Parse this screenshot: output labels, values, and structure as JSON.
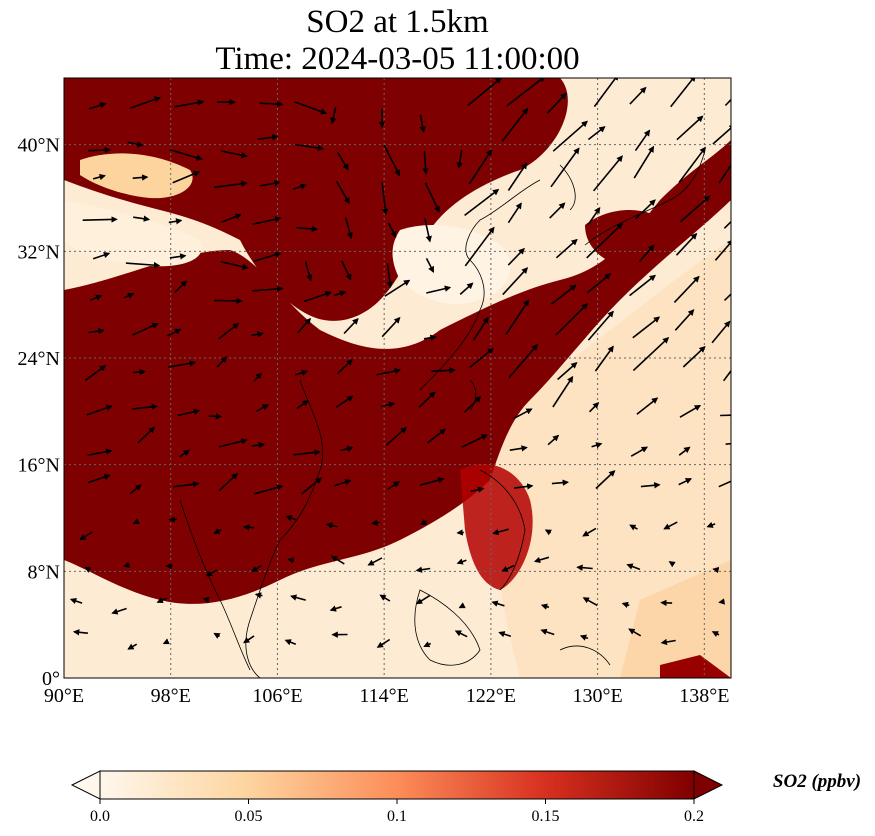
{
  "title": {
    "line1": "SO2 at 1.5km",
    "line2": "Time: 2024-03-05 11:00:00"
  },
  "map": {
    "extent": {
      "lon_min": 90,
      "lon_max": 140,
      "lat_min": 0,
      "lat_max": 45
    },
    "lon_ticks": [
      {
        "value": 90,
        "label": "90°E"
      },
      {
        "value": 98,
        "label": "98°E"
      },
      {
        "value": 106,
        "label": "106°E"
      },
      {
        "value": 114,
        "label": "114°E"
      },
      {
        "value": 122,
        "label": "122°E"
      },
      {
        "value": 130,
        "label": "130°E"
      },
      {
        "value": 138,
        "label": "138°E"
      }
    ],
    "lat_ticks": [
      {
        "value": 0,
        "label": "0°"
      },
      {
        "value": 8,
        "label": "8°N"
      },
      {
        "value": 16,
        "label": "16°N"
      },
      {
        "value": 24,
        "label": "24°N"
      },
      {
        "value": 32,
        "label": "32°N"
      },
      {
        "value": 40,
        "label": "40°N"
      }
    ],
    "gridlines": true,
    "colormap": "OrRd",
    "colors": {
      "low": "#fff7ec",
      "mid_low": "#fdd49e",
      "mid": "#fc8d59",
      "mid_high": "#d7301f",
      "high": "#7f0000",
      "grid": "#666666",
      "coast": "#000000"
    }
  },
  "colorbar": {
    "label": "SO2 (ppbv)",
    "ticks": [
      {
        "value": 0.0,
        "label": "0.0"
      },
      {
        "value": 0.05,
        "label": "0.05"
      },
      {
        "value": 0.1,
        "label": "0.1"
      },
      {
        "value": 0.15,
        "label": "0.15"
      },
      {
        "value": 0.2,
        "label": "0.2"
      }
    ],
    "range": [
      0.0,
      0.2
    ],
    "extend": "both"
  }
}
